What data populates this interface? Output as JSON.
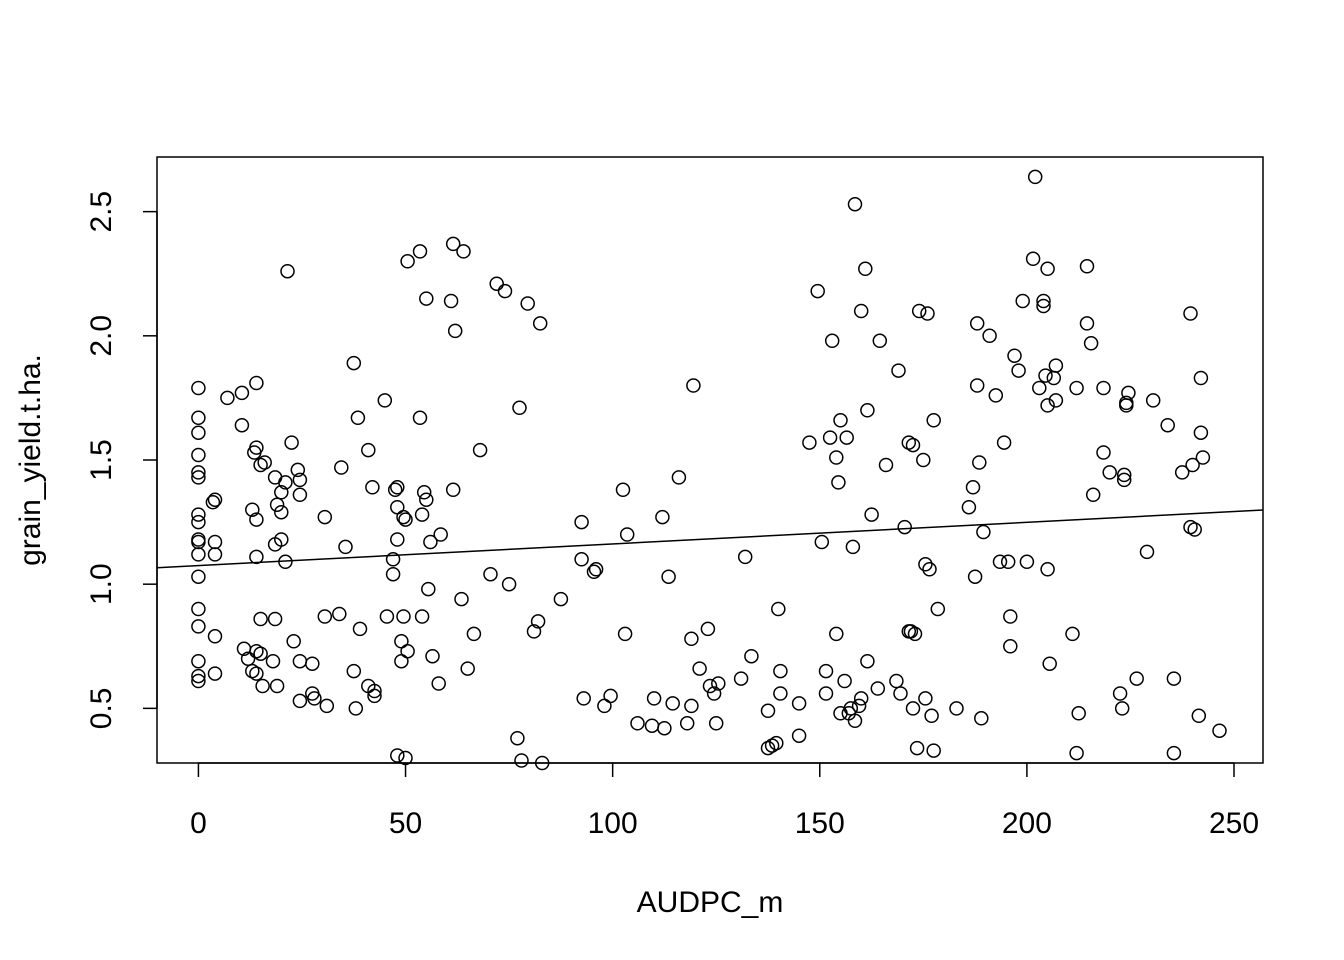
{
  "chart_data": {
    "type": "scatter",
    "title": "",
    "xlabel": "AUDPC_m",
    "ylabel": "grain_yield.t.ha.",
    "xlim": [
      -10,
      257
    ],
    "ylim": [
      0.28,
      2.72
    ],
    "xticks": [
      0,
      50,
      100,
      150,
      200,
      250
    ],
    "yticks": [
      0.5,
      1.0,
      1.5,
      2.0,
      2.5
    ],
    "xtick_labels": [
      "0",
      "50",
      "100",
      "150",
      "200",
      "250"
    ],
    "ytick_labels": [
      "0.5",
      "1.0",
      "1.5",
      "2.0",
      "2.5"
    ],
    "grid": false,
    "marker": "open-circle",
    "regression_line": {
      "intercept": 1.075,
      "slope": 0.00087
    },
    "points": [
      [
        0,
        1.79
      ],
      [
        0,
        1.67
      ],
      [
        0,
        1.61
      ],
      [
        0,
        1.52
      ],
      [
        0,
        1.45
      ],
      [
        0,
        1.43
      ],
      [
        0,
        1.28
      ],
      [
        0,
        1.25
      ],
      [
        0,
        1.18
      ],
      [
        0,
        1.17
      ],
      [
        0,
        1.12
      ],
      [
        0,
        1.03
      ],
      [
        0,
        0.9
      ],
      [
        0,
        0.83
      ],
      [
        0,
        0.69
      ],
      [
        0,
        0.63
      ],
      [
        0,
        0.61
      ],
      [
        3.5,
        1.33
      ],
      [
        4,
        1.34
      ],
      [
        4,
        1.17
      ],
      [
        4,
        1.12
      ],
      [
        4,
        0.79
      ],
      [
        4,
        0.64
      ],
      [
        7,
        1.75
      ],
      [
        10.5,
        1.77
      ],
      [
        10.5,
        1.64
      ],
      [
        11,
        0.74
      ],
      [
        12,
        0.7
      ],
      [
        13,
        0.65
      ],
      [
        13,
        1.3
      ],
      [
        13.5,
        1.53
      ],
      [
        14,
        1.55
      ],
      [
        14,
        1.81
      ],
      [
        14,
        1.26
      ],
      [
        14,
        1.11
      ],
      [
        14,
        0.73
      ],
      [
        14,
        0.64
      ],
      [
        15,
        1.48
      ],
      [
        15,
        0.86
      ],
      [
        15,
        0.72
      ],
      [
        15.5,
        0.59
      ],
      [
        16,
        1.49
      ],
      [
        18,
        0.69
      ],
      [
        18.5,
        0.86
      ],
      [
        18.5,
        1.43
      ],
      [
        18.5,
        1.16
      ],
      [
        19,
        1.32
      ],
      [
        19,
        0.59
      ],
      [
        20,
        1.29
      ],
      [
        20,
        1.18
      ],
      [
        20,
        1.37
      ],
      [
        21,
        1.41
      ],
      [
        21,
        1.09
      ],
      [
        21.5,
        2.26
      ],
      [
        22.5,
        1.57
      ],
      [
        23,
        0.77
      ],
      [
        24,
        1.46
      ],
      [
        24.5,
        1.42
      ],
      [
        24.5,
        1.36
      ],
      [
        24.5,
        0.69
      ],
      [
        24.5,
        0.53
      ],
      [
        27.5,
        0.68
      ],
      [
        27.5,
        0.56
      ],
      [
        28,
        0.54
      ],
      [
        30.5,
        0.87
      ],
      [
        30.5,
        1.27
      ],
      [
        31,
        0.51
      ],
      [
        34,
        0.88
      ],
      [
        34.5,
        1.47
      ],
      [
        35.5,
        1.15
      ],
      [
        37.5,
        0.65
      ],
      [
        37.5,
        1.89
      ],
      [
        38,
        0.5
      ],
      [
        38.5,
        1.67
      ],
      [
        39,
        0.82
      ],
      [
        41,
        0.59
      ],
      [
        41,
        1.54
      ],
      [
        42,
        1.39
      ],
      [
        42.5,
        0.57
      ],
      [
        42.5,
        0.55
      ],
      [
        45,
        1.74
      ],
      [
        45.5,
        0.87
      ],
      [
        47,
        1.04
      ],
      [
        47,
        1.1
      ],
      [
        47.5,
        1.38
      ],
      [
        48,
        1.31
      ],
      [
        48,
        1.18
      ],
      [
        48,
        0.31
      ],
      [
        48,
        1.39
      ],
      [
        49,
        0.69
      ],
      [
        49,
        0.77
      ],
      [
        49.5,
        0.87
      ],
      [
        49.5,
        1.27
      ],
      [
        50,
        1.26
      ],
      [
        50,
        0.3
      ],
      [
        50.5,
        2.3
      ],
      [
        50.5,
        0.73
      ],
      [
        53.5,
        2.34
      ],
      [
        53.5,
        1.67
      ],
      [
        54,
        1.28
      ],
      [
        54,
        0.87
      ],
      [
        54.5,
        1.37
      ],
      [
        55,
        2.15
      ],
      [
        55,
        1.34
      ],
      [
        55.5,
        0.98
      ],
      [
        56,
        1.17
      ],
      [
        56.5,
        0.71
      ],
      [
        58,
        0.6
      ],
      [
        58.5,
        1.2
      ],
      [
        61,
        2.14
      ],
      [
        61.5,
        2.37
      ],
      [
        61.5,
        1.38
      ],
      [
        62,
        2.02
      ],
      [
        63.5,
        0.94
      ],
      [
        64,
        2.34
      ],
      [
        65,
        0.66
      ],
      [
        66.5,
        0.8
      ],
      [
        68,
        1.54
      ],
      [
        70.5,
        1.04
      ],
      [
        72,
        2.21
      ],
      [
        74,
        2.18
      ],
      [
        75,
        1.0
      ],
      [
        77,
        0.38
      ],
      [
        77.5,
        1.71
      ],
      [
        78,
        0.29
      ],
      [
        79.5,
        2.13
      ],
      [
        81,
        0.81
      ],
      [
        82.5,
        2.05
      ],
      [
        82,
        0.85
      ],
      [
        83,
        0.28
      ],
      [
        87.5,
        0.94
      ],
      [
        92.5,
        1.25
      ],
      [
        92.5,
        1.1
      ],
      [
        93,
        0.54
      ],
      [
        95.5,
        1.05
      ],
      [
        96,
        1.06
      ],
      [
        98,
        0.51
      ],
      [
        99.5,
        0.55
      ],
      [
        102.5,
        1.38
      ],
      [
        103,
        0.8
      ],
      [
        103.5,
        1.2
      ],
      [
        106,
        0.44
      ],
      [
        109.5,
        0.43
      ],
      [
        110,
        0.54
      ],
      [
        112,
        1.27
      ],
      [
        112.5,
        0.42
      ],
      [
        113.5,
        1.03
      ],
      [
        114.5,
        0.52
      ],
      [
        116,
        1.43
      ],
      [
        118,
        0.44
      ],
      [
        119,
        0.51
      ],
      [
        119,
        0.78
      ],
      [
        119.5,
        1.8
      ],
      [
        121,
        0.66
      ],
      [
        123,
        0.82
      ],
      [
        123.5,
        0.59
      ],
      [
        124.5,
        0.56
      ],
      [
        125,
        0.44
      ],
      [
        125.5,
        0.6
      ],
      [
        131,
        0.62
      ],
      [
        132,
        1.11
      ],
      [
        133.5,
        0.71
      ],
      [
        137.5,
        0.34
      ],
      [
        137.5,
        0.49
      ],
      [
        138.5,
        0.35
      ],
      [
        139.5,
        0.36
      ],
      [
        140,
        0.9
      ],
      [
        140.5,
        0.65
      ],
      [
        140.5,
        0.56
      ],
      [
        145,
        0.39
      ],
      [
        145,
        0.52
      ],
      [
        147.5,
        1.57
      ],
      [
        149.5,
        2.18
      ],
      [
        150.5,
        1.17
      ],
      [
        151.5,
        0.56
      ],
      [
        151.5,
        0.65
      ],
      [
        152.5,
        1.59
      ],
      [
        153,
        1.98
      ],
      [
        154,
        1.51
      ],
      [
        154,
        0.8
      ],
      [
        154.5,
        1.41
      ],
      [
        155,
        1.66
      ],
      [
        155,
        0.48
      ],
      [
        156,
        0.61
      ],
      [
        156.5,
        1.59
      ],
      [
        157,
        0.48
      ],
      [
        157.5,
        0.5
      ],
      [
        158,
        1.15
      ],
      [
        158.5,
        2.53
      ],
      [
        158.5,
        0.45
      ],
      [
        159.5,
        0.51
      ],
      [
        160,
        2.1
      ],
      [
        160,
        0.54
      ],
      [
        161,
        2.27
      ],
      [
        161.5,
        0.69
      ],
      [
        161.5,
        1.7
      ],
      [
        162.5,
        1.28
      ],
      [
        164,
        0.58
      ],
      [
        164.5,
        1.98
      ],
      [
        166,
        1.48
      ],
      [
        168.5,
        0.61
      ],
      [
        169,
        1.86
      ],
      [
        169.5,
        0.56
      ],
      [
        170.5,
        1.23
      ],
      [
        171.5,
        0.81
      ],
      [
        171.5,
        1.57
      ],
      [
        172,
        0.81
      ],
      [
        172.5,
        1.56
      ],
      [
        172.5,
        0.5
      ],
      [
        173,
        0.8
      ],
      [
        173.5,
        0.34
      ],
      [
        174,
        2.1
      ],
      [
        175,
        1.5
      ],
      [
        175.5,
        0.54
      ],
      [
        175.5,
        1.08
      ],
      [
        176,
        2.09
      ],
      [
        176.5,
        1.06
      ],
      [
        177,
        0.47
      ],
      [
        177.5,
        1.66
      ],
      [
        177.5,
        0.33
      ],
      [
        178.5,
        0.9
      ],
      [
        183,
        0.5
      ],
      [
        186,
        1.31
      ],
      [
        187,
        1.39
      ],
      [
        187.5,
        1.03
      ],
      [
        188,
        2.05
      ],
      [
        188,
        1.8
      ],
      [
        188.5,
        1.49
      ],
      [
        189,
        0.46
      ],
      [
        189.5,
        1.21
      ],
      [
        191,
        2.0
      ],
      [
        192.5,
        1.76
      ],
      [
        193.5,
        1.09
      ],
      [
        194.5,
        1.57
      ],
      [
        195.5,
        1.09
      ],
      [
        196,
        0.87
      ],
      [
        196,
        0.75
      ],
      [
        197,
        1.92
      ],
      [
        198,
        1.86
      ],
      [
        199,
        2.14
      ],
      [
        200,
        1.09
      ],
      [
        201.5,
        2.31
      ],
      [
        202,
        2.64
      ],
      [
        203,
        1.79
      ],
      [
        204,
        2.14
      ],
      [
        204,
        2.12
      ],
      [
        204.5,
        1.84
      ],
      [
        205,
        2.27
      ],
      [
        205,
        1.72
      ],
      [
        205,
        1.06
      ],
      [
        205.5,
        0.68
      ],
      [
        206.5,
        1.83
      ],
      [
        207,
        1.88
      ],
      [
        207,
        1.74
      ],
      [
        211,
        0.8
      ],
      [
        212,
        1.79
      ],
      [
        212,
        0.32
      ],
      [
        212.5,
        0.48
      ],
      [
        214.5,
        2.28
      ],
      [
        214.5,
        2.05
      ],
      [
        215.5,
        1.97
      ],
      [
        216,
        1.36
      ],
      [
        218.5,
        1.53
      ],
      [
        218.5,
        1.79
      ],
      [
        220,
        1.45
      ],
      [
        222.5,
        0.56
      ],
      [
        223,
        0.5
      ],
      [
        223.5,
        1.42
      ],
      [
        223.5,
        1.44
      ],
      [
        224,
        1.72
      ],
      [
        224,
        1.73
      ],
      [
        224.5,
        1.77
      ],
      [
        226.5,
        0.62
      ],
      [
        229,
        1.13
      ],
      [
        230.5,
        1.74
      ],
      [
        234,
        1.64
      ],
      [
        235.5,
        0.62
      ],
      [
        235.5,
        0.32
      ],
      [
        237.5,
        1.45
      ],
      [
        239.5,
        2.09
      ],
      [
        239.5,
        1.23
      ],
      [
        240,
        1.48
      ],
      [
        240.5,
        1.22
      ],
      [
        241.5,
        0.47
      ],
      [
        242,
        1.83
      ],
      [
        242,
        1.61
      ],
      [
        242.5,
        1.51
      ],
      [
        246.5,
        0.41
      ]
    ]
  }
}
